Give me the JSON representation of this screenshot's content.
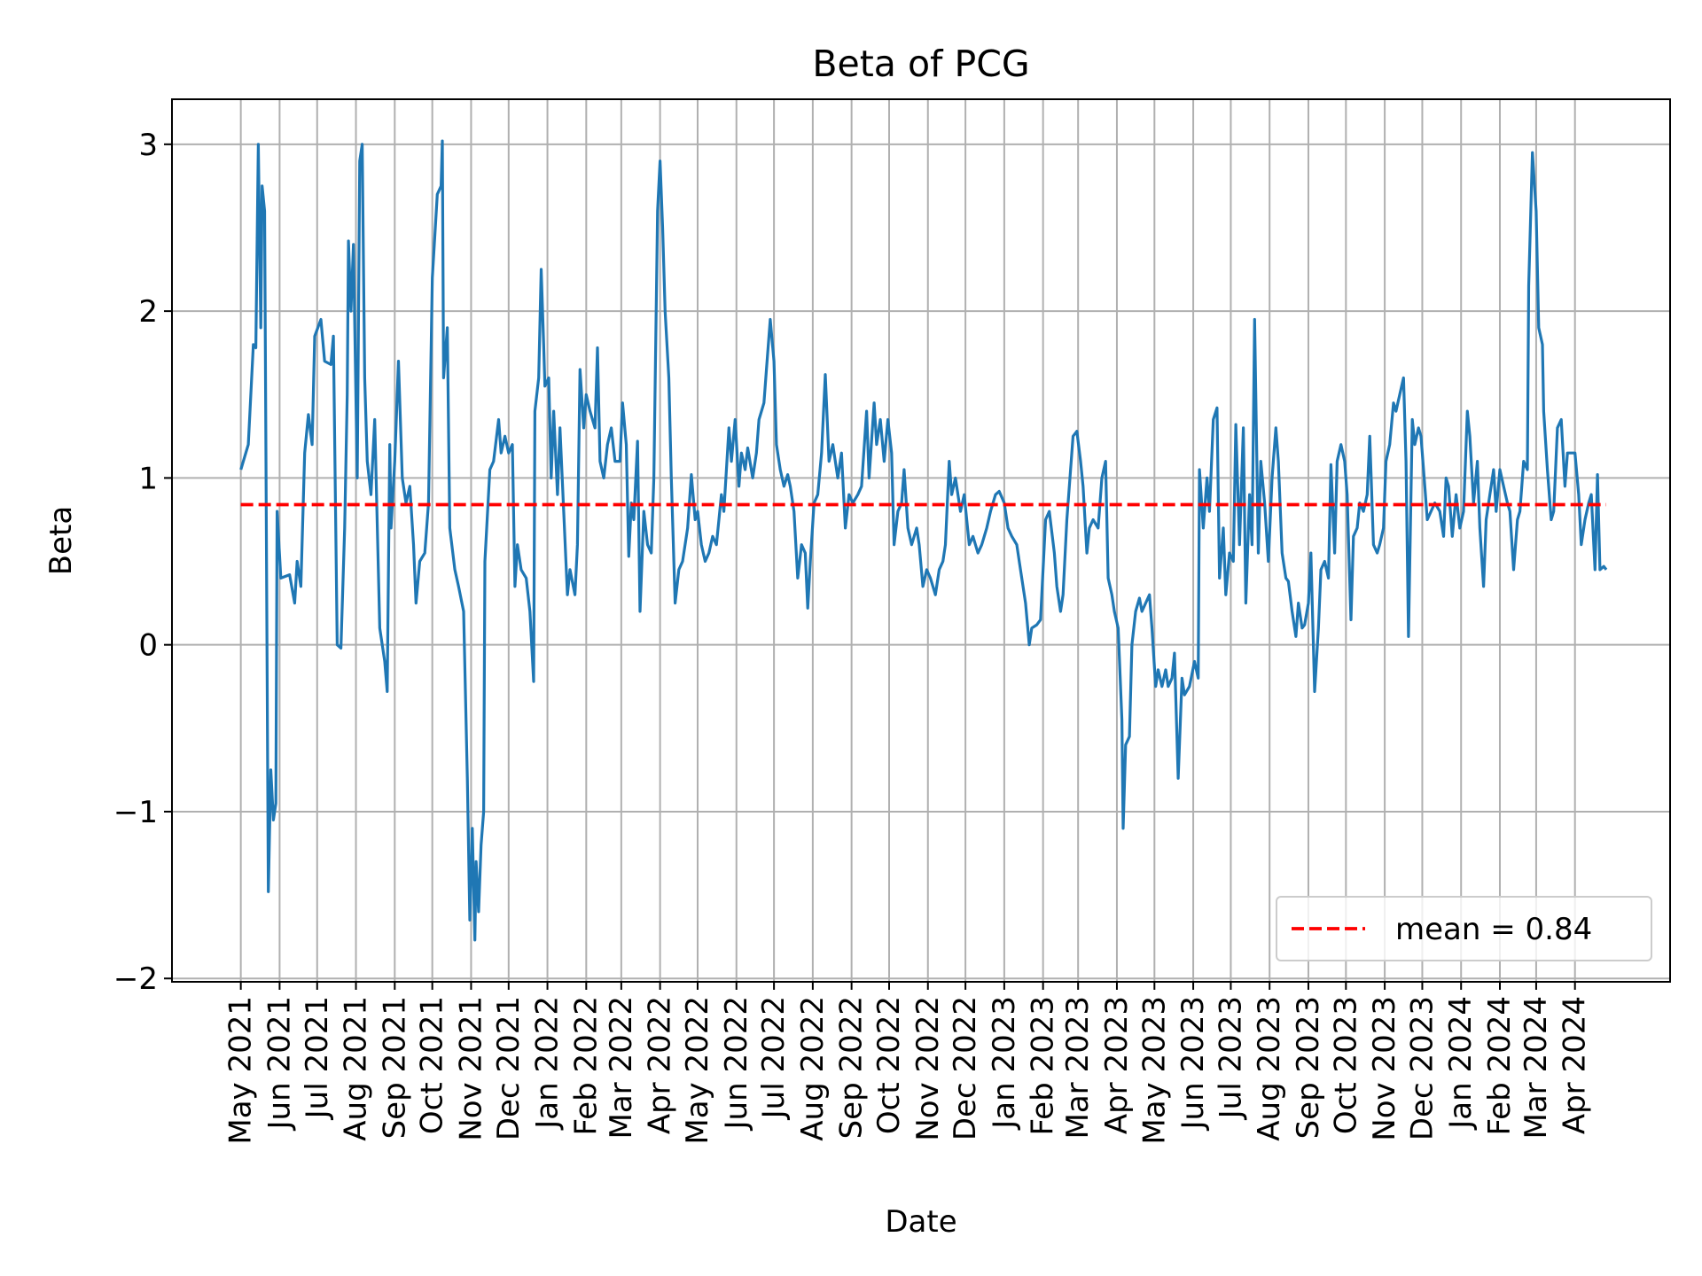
{
  "chart_data": {
    "type": "line",
    "title": "Beta of PCG",
    "xlabel": "Date",
    "ylabel": "Beta",
    "xlim": [
      "2021-03-07",
      "2024-06-16"
    ],
    "ylim": [
      -2.02,
      3.27
    ],
    "grid": true,
    "legend_position": "lower right",
    "yticks": [
      -2,
      -1,
      0,
      1,
      2,
      3
    ],
    "ytick_labels": [
      "−2",
      "−1",
      "0",
      "1",
      "2",
      "3"
    ],
    "xticks": [
      "2021-05-01",
      "2021-06-01",
      "2021-07-01",
      "2021-08-01",
      "2021-09-01",
      "2021-10-01",
      "2021-11-01",
      "2021-12-01",
      "2022-01-01",
      "2022-02-01",
      "2022-03-01",
      "2022-04-01",
      "2022-05-01",
      "2022-06-01",
      "2022-07-01",
      "2022-08-01",
      "2022-09-01",
      "2022-10-01",
      "2022-11-01",
      "2022-12-01",
      "2023-01-01",
      "2023-02-01",
      "2023-03-01",
      "2023-04-01",
      "2023-05-01",
      "2023-06-01",
      "2023-07-01",
      "2023-08-01",
      "2023-09-01",
      "2023-10-01",
      "2023-11-01",
      "2023-12-01",
      "2024-01-01",
      "2024-02-01",
      "2024-03-01",
      "2024-04-01"
    ],
    "xtick_labels": [
      "May 2021",
      "Jun 2021",
      "Jul 2021",
      "Aug 2021",
      "Sep 2021",
      "Oct 2021",
      "Nov 2021",
      "Dec 2021",
      "Jan 2022",
      "Feb 2022",
      "Mar 2022",
      "Apr 2022",
      "May 2022",
      "Jun 2022",
      "Jul 2022",
      "Aug 2022",
      "Sep 2022",
      "Oct 2022",
      "Nov 2022",
      "Dec 2022",
      "Jan 2023",
      "Feb 2023",
      "Mar 2023",
      "Apr 2023",
      "May 2023",
      "Jun 2023",
      "Jul 2023",
      "Aug 2023",
      "Sep 2023",
      "Oct 2023",
      "Nov 2023",
      "Dec 2023",
      "Jan 2024",
      "Feb 2024",
      "Mar 2024",
      "Apr 2024"
    ],
    "series": [
      {
        "color": "#1f77b4",
        "x": [
          "2021-05-01",
          "2021-05-07",
          "2021-05-11",
          "2021-05-13",
          "2021-05-15",
          "2021-05-17",
          "2021-05-18",
          "2021-05-20",
          "2021-05-23",
          "2021-05-25",
          "2021-05-27",
          "2021-05-29",
          "2021-05-30",
          "2021-06-02",
          "2021-06-09",
          "2021-06-13",
          "2021-06-15",
          "2021-06-18",
          "2021-06-21",
          "2021-06-24",
          "2021-06-27",
          "2021-06-29",
          "2021-07-04",
          "2021-07-07",
          "2021-07-12",
          "2021-07-14",
          "2021-07-17",
          "2021-07-20",
          "2021-07-23",
          "2021-07-25",
          "2021-07-26",
          "2021-07-28",
          "2021-07-30",
          "2021-08-02",
          "2021-08-04",
          "2021-08-06",
          "2021-08-08",
          "2021-08-10",
          "2021-08-13",
          "2021-08-16",
          "2021-08-20",
          "2021-08-24",
          "2021-08-26",
          "2021-08-28",
          "2021-08-29",
          "2021-09-01",
          "2021-09-04",
          "2021-09-07",
          "2021-09-10",
          "2021-09-13",
          "2021-09-16",
          "2021-09-18",
          "2021-09-21",
          "2021-09-25",
          "2021-09-28",
          "2021-10-01",
          "2021-10-05",
          "2021-10-08",
          "2021-10-09",
          "2021-10-10",
          "2021-10-13",
          "2021-10-15",
          "2021-10-19",
          "2021-10-22",
          "2021-10-26",
          "2021-10-29",
          "2021-10-31",
          "2021-11-02",
          "2021-11-04",
          "2021-11-05",
          "2021-11-07",
          "2021-11-09",
          "2021-11-11",
          "2021-11-12",
          "2021-11-16",
          "2021-11-19",
          "2021-11-23",
          "2021-11-25",
          "2021-11-28",
          "2021-12-01",
          "2021-12-04",
          "2021-12-06",
          "2021-12-08",
          "2021-12-11",
          "2021-12-15",
          "2021-12-18",
          "2021-12-21",
          "2021-12-22",
          "2021-12-25",
          "2021-12-27",
          "2021-12-29",
          "2021-12-30",
          "2022-01-02",
          "2022-01-04",
          "2022-01-06",
          "2022-01-09",
          "2022-01-11",
          "2022-01-14",
          "2022-01-17",
          "2022-01-19",
          "2022-01-23",
          "2022-01-25",
          "2022-01-27",
          "2022-01-30",
          "2022-02-01",
          "2022-02-04",
          "2022-02-08",
          "2022-02-10",
          "2022-02-12",
          "2022-02-15",
          "2022-02-18",
          "2022-02-21",
          "2022-02-24",
          "2022-02-28",
          "2022-03-02",
          "2022-03-05",
          "2022-03-07",
          "2022-03-09",
          "2022-03-11",
          "2022-03-14",
          "2022-03-16",
          "2022-03-19",
          "2022-03-22",
          "2022-03-25",
          "2022-03-27",
          "2022-03-30",
          "2022-04-01",
          "2022-04-03",
          "2022-04-05",
          "2022-04-08",
          "2022-04-10",
          "2022-04-13",
          "2022-04-16",
          "2022-04-19",
          "2022-04-23",
          "2022-04-26",
          "2022-04-29",
          "2022-05-01",
          "2022-05-04",
          "2022-05-07",
          "2022-05-10",
          "2022-05-13",
          "2022-05-16",
          "2022-05-20",
          "2022-05-22",
          "2022-05-26",
          "2022-05-28",
          "2022-05-31",
          "2022-06-03",
          "2022-06-05",
          "2022-06-08",
          "2022-06-10",
          "2022-06-14",
          "2022-06-17",
          "2022-06-19",
          "2022-06-23",
          "2022-06-25",
          "2022-06-28",
          "2022-07-01",
          "2022-07-03",
          "2022-07-06",
          "2022-07-09",
          "2022-07-12",
          "2022-07-14",
          "2022-07-17",
          "2022-07-20",
          "2022-07-23",
          "2022-07-26",
          "2022-07-28",
          "2022-07-30",
          "2022-08-02",
          "2022-08-05",
          "2022-08-08",
          "2022-08-11",
          "2022-08-14",
          "2022-08-17",
          "2022-08-21",
          "2022-08-24",
          "2022-08-27",
          "2022-08-30",
          "2022-09-02",
          "2022-09-06",
          "2022-09-09",
          "2022-09-13",
          "2022-09-15",
          "2022-09-19",
          "2022-09-21",
          "2022-09-24",
          "2022-09-27",
          "2022-09-30",
          "2022-10-03",
          "2022-10-05",
          "2022-10-08",
          "2022-10-11",
          "2022-10-13",
          "2022-10-16",
          "2022-10-19",
          "2022-10-23",
          "2022-10-25",
          "2022-10-28",
          "2022-10-31",
          "2022-11-03",
          "2022-11-07",
          "2022-11-10",
          "2022-11-13",
          "2022-11-15",
          "2022-11-18",
          "2022-11-20",
          "2022-11-23",
          "2022-11-27",
          "2022-11-30",
          "2022-12-04",
          "2022-12-07",
          "2022-12-11",
          "2022-12-14",
          "2022-12-18",
          "2022-12-21",
          "2022-12-25",
          "2022-12-28",
          "2023-01-01",
          "2023-01-04",
          "2023-01-07",
          "2023-01-11",
          "2023-01-14",
          "2023-01-18",
          "2023-01-21",
          "2023-01-23",
          "2023-01-27",
          "2023-01-30",
          "2023-02-03",
          "2023-02-06",
          "2023-02-10",
          "2023-02-12",
          "2023-02-15",
          "2023-02-17",
          "2023-02-20",
          "2023-02-23",
          "2023-02-25",
          "2023-02-28",
          "2023-03-03",
          "2023-03-05",
          "2023-03-08",
          "2023-03-10",
          "2023-03-13",
          "2023-03-17",
          "2023-03-20",
          "2023-03-23",
          "2023-03-25",
          "2023-03-28",
          "2023-03-30",
          "2023-04-02",
          "2023-04-05",
          "2023-04-06",
          "2023-04-08",
          "2023-04-11",
          "2023-04-13",
          "2023-04-16",
          "2023-04-19",
          "2023-04-21",
          "2023-04-24",
          "2023-04-27",
          "2023-04-29",
          "2023-05-02",
          "2023-05-04",
          "2023-05-07",
          "2023-05-10",
          "2023-05-12",
          "2023-05-15",
          "2023-05-17",
          "2023-05-20",
          "2023-05-23",
          "2023-05-25",
          "2023-05-29",
          "2023-06-02",
          "2023-06-05",
          "2023-06-06",
          "2023-06-09",
          "2023-06-12",
          "2023-06-14",
          "2023-06-17",
          "2023-06-20",
          "2023-06-22",
          "2023-06-25",
          "2023-06-27",
          "2023-06-30",
          "2023-07-03",
          "2023-07-05",
          "2023-07-08",
          "2023-07-11",
          "2023-07-13",
          "2023-07-16",
          "2023-07-18",
          "2023-07-20",
          "2023-07-23",
          "2023-07-25",
          "2023-07-28",
          "2023-07-31",
          "2023-08-03",
          "2023-08-06",
          "2023-08-08",
          "2023-08-11",
          "2023-08-14",
          "2023-08-16",
          "2023-08-19",
          "2023-08-22",
          "2023-08-24",
          "2023-08-27",
          "2023-08-29",
          "2023-09-01",
          "2023-09-03",
          "2023-09-06",
          "2023-09-09",
          "2023-09-11",
          "2023-09-14",
          "2023-09-17",
          "2023-09-19",
          "2023-09-22",
          "2023-09-24",
          "2023-09-27",
          "2023-09-30",
          "2023-10-02",
          "2023-10-05",
          "2023-10-07",
          "2023-10-10",
          "2023-10-12",
          "2023-10-15",
          "2023-10-18",
          "2023-10-20",
          "2023-10-23",
          "2023-10-26",
          "2023-10-28",
          "2023-10-31",
          "2023-11-02",
          "2023-11-05",
          "2023-11-08",
          "2023-11-10",
          "2023-11-13",
          "2023-11-16",
          "2023-11-18",
          "2023-11-20",
          "2023-11-23",
          "2023-11-25",
          "2023-11-28",
          "2023-11-30",
          "2023-12-03",
          "2023-12-05",
          "2023-12-08",
          "2023-12-11",
          "2023-12-15",
          "2023-12-18",
          "2023-12-20",
          "2023-12-22",
          "2023-12-25",
          "2023-12-28",
          "2023-12-31",
          "2024-01-03",
          "2024-01-06",
          "2024-01-08",
          "2024-01-11",
          "2024-01-14",
          "2024-01-16",
          "2024-01-19",
          "2024-01-21",
          "2024-01-24",
          "2024-01-27",
          "2024-01-29",
          "2024-02-01",
          "2024-02-04",
          "2024-02-07",
          "2024-02-09",
          "2024-02-12",
          "2024-02-15",
          "2024-02-17",
          "2024-02-20",
          "2024-02-23",
          "2024-02-24",
          "2024-02-27",
          "2024-03-01",
          "2024-03-03",
          "2024-03-06",
          "2024-03-07",
          "2024-03-10",
          "2024-03-13",
          "2024-03-15",
          "2024-03-18",
          "2024-03-21",
          "2024-03-24",
          "2024-03-26",
          "2024-04-01",
          "2024-04-04",
          "2024-04-06",
          "2024-04-09",
          "2024-04-12",
          "2024-04-14",
          "2024-04-17",
          "2024-04-19",
          "2024-04-21",
          "2024-04-24",
          "2024-04-26"
        ],
        "y": [
          1.05,
          1.2,
          1.8,
          1.78,
          3.0,
          1.9,
          2.75,
          2.6,
          -1.48,
          -0.75,
          -1.05,
          -0.95,
          0.8,
          0.4,
          0.42,
          0.25,
          0.5,
          0.35,
          1.15,
          1.38,
          1.2,
          1.85,
          1.95,
          1.7,
          1.68,
          1.85,
          0,
          -0.02,
          0.7,
          1.5,
          2.42,
          2.0,
          2.4,
          1.0,
          2.9,
          3.0,
          1.6,
          1.1,
          0.9,
          1.35,
          0.1,
          -0.1,
          -0.28,
          1.2,
          0.7,
          1.1,
          1.7,
          1.0,
          0.85,
          0.95,
          0.6,
          0.25,
          0.5,
          0.55,
          0.85,
          2.2,
          2.7,
          2.75,
          3.02,
          1.6,
          1.9,
          0.7,
          0.45,
          0.35,
          0.2,
          -0.8,
          -1.65,
          -1.1,
          -1.77,
          -1.3,
          -1.6,
          -1.2,
          -1.0,
          0.5,
          1.05,
          1.1,
          1.35,
          1.15,
          1.25,
          1.15,
          1.2,
          0.35,
          0.6,
          0.45,
          0.4,
          0.2,
          -0.22,
          1.4,
          1.6,
          2.25,
          1.8,
          1.55,
          1.6,
          1.0,
          1.4,
          0.9,
          1.3,
          0.8,
          0.3,
          0.45,
          0.3,
          0.6,
          1.65,
          1.3,
          1.5,
          1.4,
          1.3,
          1.78,
          1.1,
          1.0,
          1.2,
          1.3,
          1.1,
          1.1,
          1.45,
          1.2,
          0.53,
          0.85,
          0.75,
          1.22,
          0.2,
          0.8,
          0.6,
          0.55,
          1.0,
          2.6,
          2.9,
          2.5,
          2.0,
          1.6,
          1.0,
          0.25,
          0.45,
          0.5,
          0.7,
          1.02,
          0.75,
          0.8,
          0.6,
          0.5,
          0.55,
          0.65,
          0.6,
          0.9,
          0.8,
          1.3,
          1.1,
          1.35,
          0.95,
          1.15,
          1.05,
          1.18,
          1.0,
          1.15,
          1.35,
          1.45,
          1.65,
          1.95,
          1.7,
          1.2,
          1.05,
          0.95,
          1.02,
          0.95,
          0.8,
          0.4,
          0.6,
          0.55,
          0.22,
          0.5,
          0.85,
          0.9,
          1.15,
          1.62,
          1.1,
          1.2,
          1.0,
          1.15,
          0.7,
          0.9,
          0.85,
          0.9,
          0.95,
          1.4,
          1.0,
          1.45,
          1.2,
          1.35,
          1.1,
          1.35,
          1.15,
          0.6,
          0.8,
          0.85,
          1.05,
          0.7,
          0.6,
          0.7,
          0.6,
          0.35,
          0.45,
          0.4,
          0.3,
          0.45,
          0.5,
          0.6,
          1.1,
          0.9,
          1.0,
          0.8,
          0.9,
          0.6,
          0.65,
          0.55,
          0.6,
          0.7,
          0.8,
          0.9,
          0.92,
          0.85,
          0.7,
          0.65,
          0.6,
          0.45,
          0.25,
          0.0,
          0.1,
          0.12,
          0.15,
          0.75,
          0.8,
          0.55,
          0.35,
          0.2,
          0.3,
          0.75,
          1.05,
          1.25,
          1.28,
          1.1,
          0.95,
          0.55,
          0.7,
          0.75,
          0.7,
          1.0,
          1.1,
          0.4,
          0.3,
          0.2,
          0.1,
          -0.45,
          -1.1,
          -0.6,
          -0.55,
          0.0,
          0.2,
          0.28,
          0.2,
          0.25,
          0.3,
          0.1,
          -0.25,
          -0.15,
          -0.25,
          -0.15,
          -0.25,
          -0.2,
          -0.05,
          -0.8,
          -0.2,
          -0.3,
          -0.25,
          -0.1,
          -0.2,
          1.05,
          0.7,
          1.0,
          0.8,
          1.35,
          1.42,
          0.4,
          0.7,
          0.3,
          0.55,
          0.5,
          1.32,
          0.6,
          1.3,
          0.25,
          0.9,
          0.6,
          1.95,
          0.55,
          1.1,
          0.85,
          0.5,
          1.0,
          1.3,
          1.1,
          0.55,
          0.4,
          0.38,
          0.2,
          0.05,
          0.25,
          0.1,
          0.12,
          0.25,
          0.55,
          -0.28,
          0.1,
          0.45,
          0.5,
          0.4,
          1.08,
          0.55,
          1.1,
          1.2,
          1.1,
          0.9,
          0.15,
          0.65,
          0.7,
          0.85,
          0.8,
          0.9,
          1.25,
          0.6,
          0.55,
          0.6,
          0.7,
          1.1,
          1.2,
          1.45,
          1.4,
          1.5,
          1.6,
          1.1,
          0.05,
          1.35,
          1.2,
          1.3,
          1.25,
          0.95,
          0.75,
          0.8,
          0.85,
          0.8,
          0.65,
          1.0,
          0.95,
          0.65,
          0.9,
          0.7,
          0.8,
          1.4,
          1.25,
          0.85,
          1.1,
          0.7,
          0.35,
          0.75,
          0.9,
          1.05,
          0.8,
          1.05,
          0.95,
          0.85,
          0.8,
          0.45,
          0.75,
          0.8,
          1.1,
          1.05,
          2.15,
          2.95,
          2.6,
          1.9,
          1.8,
          1.4,
          1.05,
          0.75,
          0.8,
          1.3,
          1.35,
          0.95,
          1.15,
          1.15,
          0.9,
          0.6,
          0.75,
          0.85,
          0.9,
          0.45,
          1.02,
          0.45,
          0.47,
          0.45
        ]
      }
    ],
    "mean_line": {
      "value": 0.84,
      "color": "#ff0000",
      "style": "dashed",
      "x_range": [
        "2021-05-01",
        "2024-04-26"
      ]
    },
    "legend": [
      {
        "label": "mean = 0.84",
        "color": "#ff0000",
        "style": "dashed"
      }
    ]
  }
}
